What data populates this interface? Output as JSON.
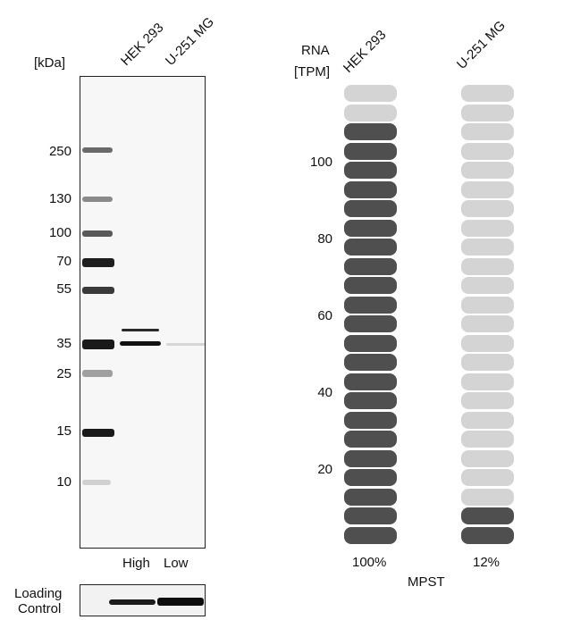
{
  "blot": {
    "unit_label": "[kDa]",
    "lane_labels": [
      "HEK 293",
      "U-251 MG"
    ],
    "markers": [
      {
        "label": "250",
        "kda": 250
      },
      {
        "label": "130",
        "kda": 130
      },
      {
        "label": "100",
        "kda": 100
      },
      {
        "label": "70",
        "kda": 70
      },
      {
        "label": "55",
        "kda": 55
      },
      {
        "label": "35",
        "kda": 35
      },
      {
        "label": "25",
        "kda": 25
      },
      {
        "label": "15",
        "kda": 15
      },
      {
        "label": "10",
        "kda": 10
      }
    ],
    "lane_levels": [
      "High",
      "Low"
    ],
    "loading_control_label": [
      "Loading",
      "Control"
    ]
  },
  "rna": {
    "header": [
      "RNA",
      "[TPM]"
    ],
    "cell_lines": [
      "HEK 293",
      "U-251 MG"
    ],
    "axis_ticks": [
      "100",
      "80",
      "60",
      "40",
      "20"
    ],
    "columns": [
      {
        "name": "HEK 293",
        "percent_label": "100%",
        "filled_fraction": 0.92
      },
      {
        "name": "U-251 MG",
        "percent_label": "12%",
        "filled_fraction": 0.08
      }
    ],
    "gene": "MPST",
    "colors": {
      "filled": "#4f4f4f",
      "empty": "#d4d4d4"
    }
  }
}
